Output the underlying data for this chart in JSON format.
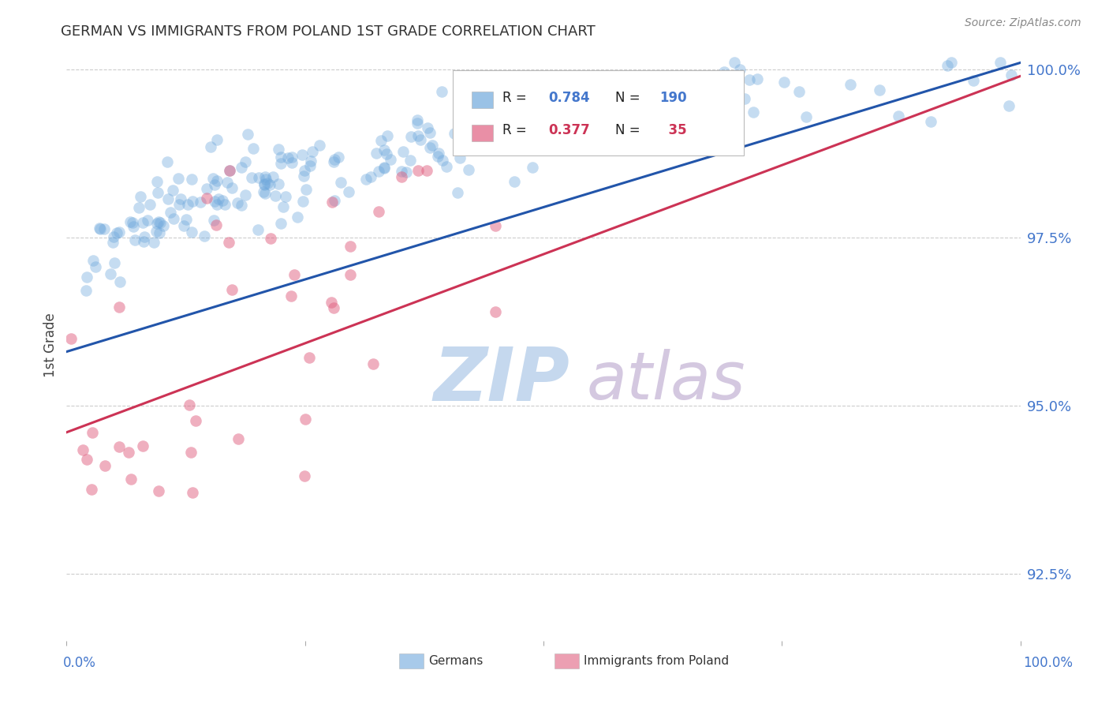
{
  "title": "GERMAN VS IMMIGRANTS FROM POLAND 1ST GRADE CORRELATION CHART",
  "source": "Source: ZipAtlas.com",
  "ylabel": "1st Grade",
  "xrange": [
    0.0,
    1.0
  ],
  "yrange": [
    0.915,
    1.003
  ],
  "legend_german_r": "0.784",
  "legend_german_n": "190",
  "legend_poland_r": "0.377",
  "legend_poland_n": "35",
  "german_color": "#6fa8dc",
  "poland_color": "#e06080",
  "line_german_color": "#2255aa",
  "line_poland_color": "#cc3355",
  "axis_color": "#4477cc",
  "background_color": "#ffffff",
  "grid_color": "#cccccc",
  "yticks": [
    0.925,
    0.95,
    0.975,
    1.0
  ],
  "ytick_labels": [
    "92.5%",
    "95.0%",
    "97.5%",
    "100.0%"
  ]
}
